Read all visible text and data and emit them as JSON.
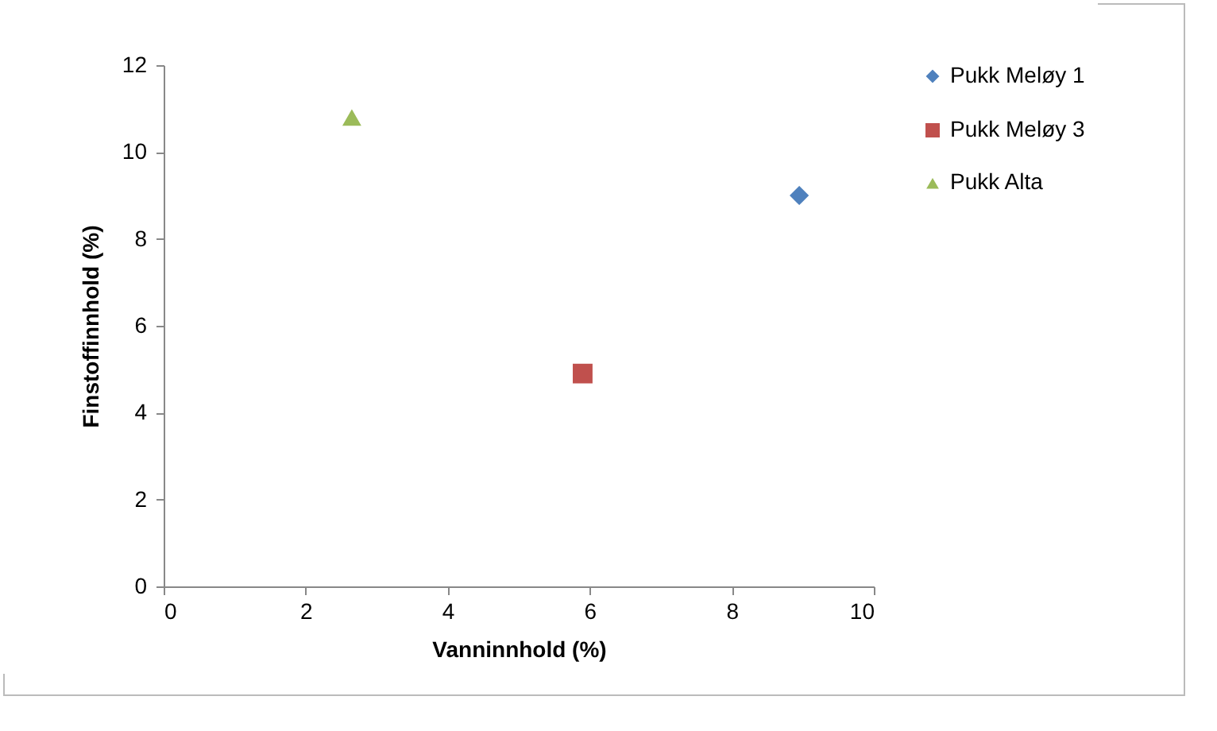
{
  "chart_data": {
    "type": "scatter",
    "xlabel": "Vanninnhold (%)",
    "ylabel": "Finstoffinnhold (%)",
    "xlim": [
      0,
      10
    ],
    "ylim": [
      0,
      12
    ],
    "xticks": [
      0,
      2,
      4,
      6,
      8,
      10
    ],
    "yticks": [
      0,
      2,
      4,
      6,
      8,
      10,
      12
    ],
    "grid": false,
    "legend": "right",
    "series": [
      {
        "name": "Pukk Meløy 1",
        "color": "#4f81bd",
        "marker": "diamond",
        "x": [
          8.95
        ],
        "values": [
          9.0
        ]
      },
      {
        "name": "Pukk Meløy 3",
        "color": "#c0504d",
        "marker": "square",
        "x": [
          5.9
        ],
        "values": [
          4.9
        ]
      },
      {
        "name": "Pukk Alta",
        "color": "#9bbb59",
        "marker": "triangle",
        "x": [
          2.65
        ],
        "values": [
          10.8
        ]
      }
    ]
  }
}
